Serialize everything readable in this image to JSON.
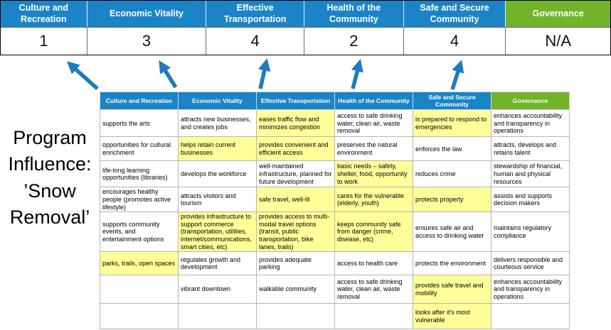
{
  "title": "Program Influence: ’Snow Removal’",
  "banner": {
    "columns": [
      {
        "label": "Culture and Recreation",
        "score": "1"
      },
      {
        "label": "Economic Vitality",
        "score": "3"
      },
      {
        "label": "Effective Transportation",
        "score": "4"
      },
      {
        "label": "Health of the Community",
        "score": "2"
      },
      {
        "label": "Safe and Secure Community",
        "score": "4"
      },
      {
        "label": "Governance",
        "score": "N/A"
      }
    ]
  },
  "colors": {
    "header_blue": "#1b84c7",
    "header_green": "#73b32a",
    "highlight_yellow": "#ffff99",
    "arrow_blue": "#1e7bc0"
  },
  "matrix": {
    "headers": [
      "Culture and Recreation",
      "Economic Vitality",
      "Effective Transportation",
      "Health of the Community",
      "Safe and Secure Community",
      "Governance"
    ],
    "rows": [
      [
        {
          "text": "supports the arts",
          "highlight": false
        },
        {
          "text": "attracts new businesses, and creates jobs",
          "highlight": false
        },
        {
          "text": "eases traffic flow and minimizes congestion",
          "highlight": true
        },
        {
          "text": "access to safe drinking water, clean air, waste removal",
          "highlight": false
        },
        {
          "text": "is prepared to respond to emergencies",
          "highlight": true
        },
        {
          "text": "enhances accountability and transparency in operations",
          "highlight": false
        }
      ],
      [
        {
          "text": "opportunities for cultural enrichment",
          "highlight": false
        },
        {
          "text": "helps retain current businesses",
          "highlight": true
        },
        {
          "text": "provides convenient and efficient access",
          "highlight": true
        },
        {
          "text": "preserves the natural environment",
          "highlight": false
        },
        {
          "text": "enforces the law",
          "highlight": false
        },
        {
          "text": "attracts, develops and retains talent",
          "highlight": false
        }
      ],
      [
        {
          "text": "life-long learning opportunities (libraries)",
          "highlight": false
        },
        {
          "text": "develops the workforce",
          "highlight": false
        },
        {
          "text": "well-maintained infrastructure, planned for future development",
          "highlight": false
        },
        {
          "text": "basic needs – safety, shelter, food, opportunity to work",
          "highlight": true
        },
        {
          "text": "reduces crime",
          "highlight": false
        },
        {
          "text": "stewardship of financial, human and physical resources",
          "highlight": false
        }
      ],
      [
        {
          "text": "encourages healthy people (promotes active lifestyle)",
          "highlight": false
        },
        {
          "text": "attracts visitors and tourism",
          "highlight": false
        },
        {
          "text": "safe travel, well-lit",
          "highlight": true
        },
        {
          "text": "cares for the vulnerable (elderly, youth)",
          "highlight": true
        },
        {
          "text": "protects property",
          "highlight": true
        },
        {
          "text": "assists and supports decision makers",
          "highlight": false
        }
      ],
      [
        {
          "text": "supports community events, and entertainment options",
          "highlight": false
        },
        {
          "text": "provides infrastructure to support commerce (transportation, utilities, internet/communications, smart cities, etc)",
          "highlight": true
        },
        {
          "text": "provides access to multi-modal travel options (transit, public transportation, bike lanes, trails)",
          "highlight": true
        },
        {
          "text": "keeps community safe from danger (crime, disease, etc)",
          "highlight": true
        },
        {
          "text": "ensures safe air and access to drinking water",
          "highlight": false
        },
        {
          "text": "maintains regulatory compliance",
          "highlight": false
        }
      ],
      [
        {
          "text": "parks, trails, open spaces",
          "highlight": true
        },
        {
          "text": "regulates growth and development",
          "highlight": false
        },
        {
          "text": "provides adequate parking",
          "highlight": false
        },
        {
          "text": "access to health care",
          "highlight": false
        },
        {
          "text": "protects the environment",
          "highlight": false
        },
        {
          "text": "delivers responsible and courteous service",
          "highlight": false
        }
      ],
      [
        {
          "text": "",
          "highlight": false
        },
        {
          "text": "vibrant downtown",
          "highlight": false
        },
        {
          "text": "walkable community",
          "highlight": false
        },
        {
          "text": "access to safe drinking water, clean air, waste removal",
          "highlight": false
        },
        {
          "text": "provides safe travel and mobility",
          "highlight": true
        },
        {
          "text": "enhances accountability and transparency in operations",
          "highlight": false
        }
      ],
      [
        {
          "text": "",
          "highlight": false
        },
        {
          "text": "",
          "highlight": false
        },
        {
          "text": "",
          "highlight": false
        },
        {
          "text": "",
          "highlight": false
        },
        {
          "text": "looks after it's most vulnerable",
          "highlight": true
        },
        {
          "text": "",
          "highlight": false
        }
      ]
    ]
  }
}
